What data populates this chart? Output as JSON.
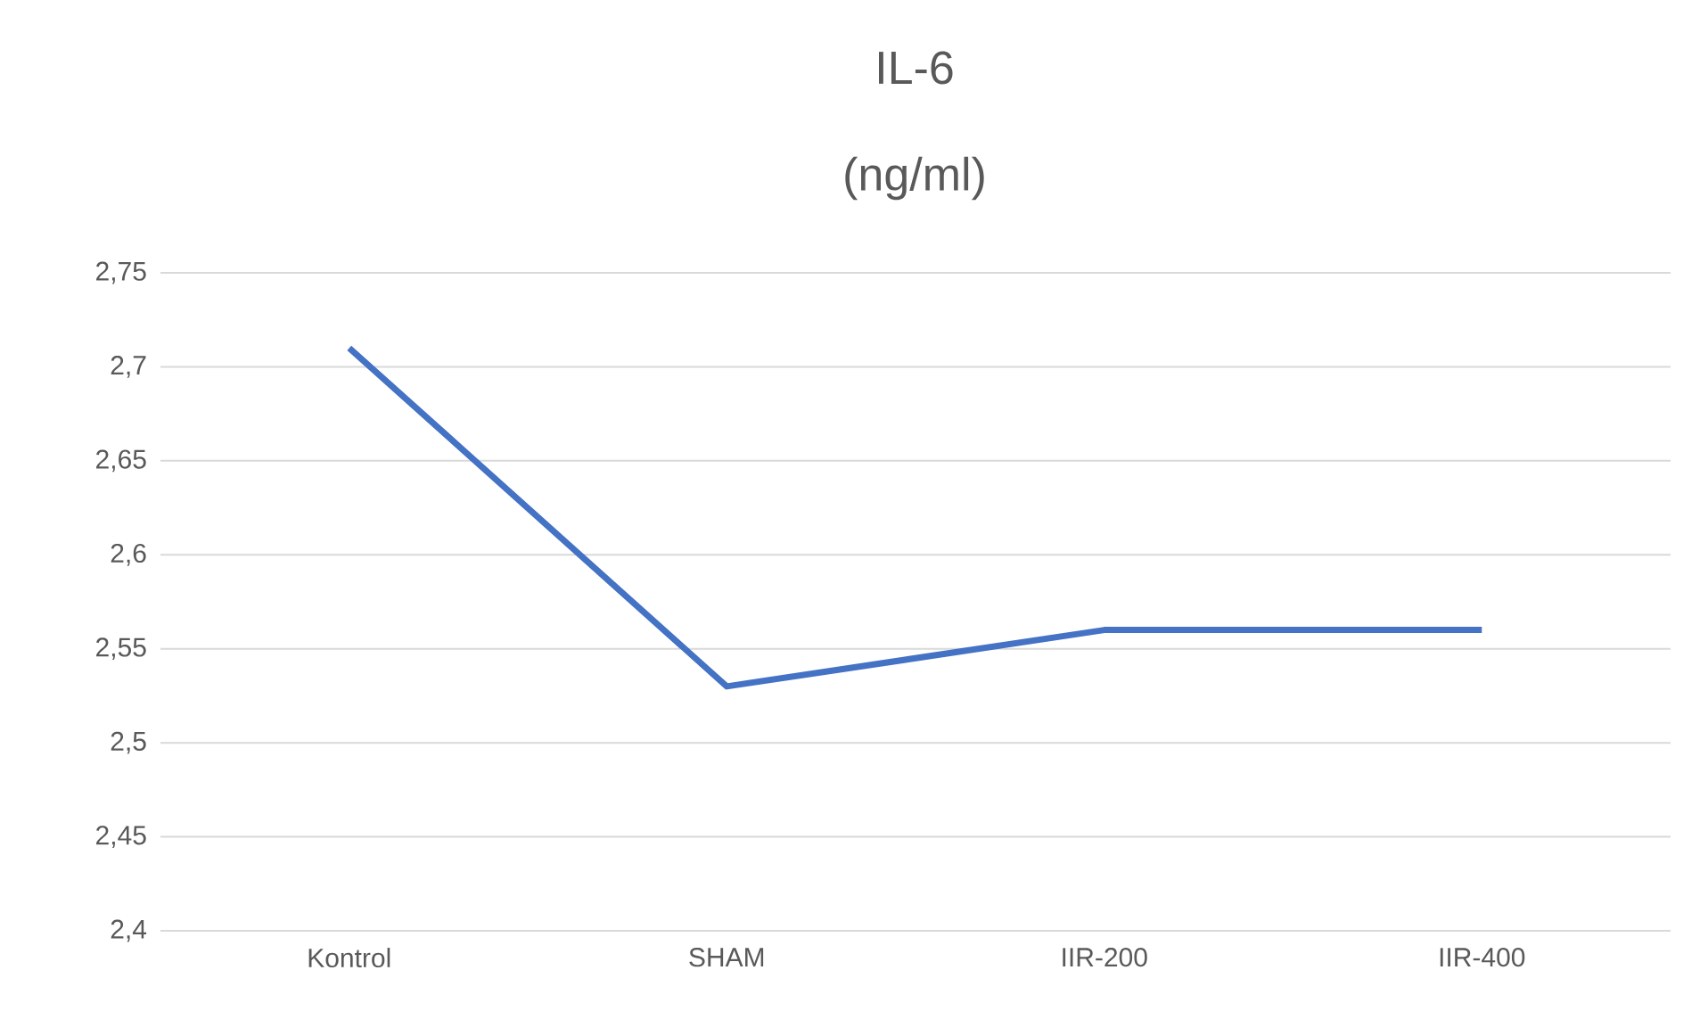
{
  "chart_data": {
    "type": "line",
    "title": "IL-6",
    "subtitle": "(ng/ml)",
    "categories": [
      "Kontrol",
      "SHAM",
      "IIR-200",
      "IIR-400"
    ],
    "series": [
      {
        "color": "#4472c4",
        "values": [
          2.71,
          2.53,
          2.56,
          2.56
        ]
      }
    ],
    "ylim": [
      2.4,
      2.75
    ],
    "yticks": [
      {
        "value": 2.4,
        "label": "2,4"
      },
      {
        "value": 2.45,
        "label": "2,45"
      },
      {
        "value": 2.5,
        "label": "2,5"
      },
      {
        "value": 2.55,
        "label": "2,55"
      },
      {
        "value": 2.6,
        "label": "2,6"
      },
      {
        "value": 2.65,
        "label": "2,65"
      },
      {
        "value": 2.7,
        "label": "2,7"
      },
      {
        "value": 2.75,
        "label": "2,75"
      }
    ],
    "grid": "y"
  }
}
